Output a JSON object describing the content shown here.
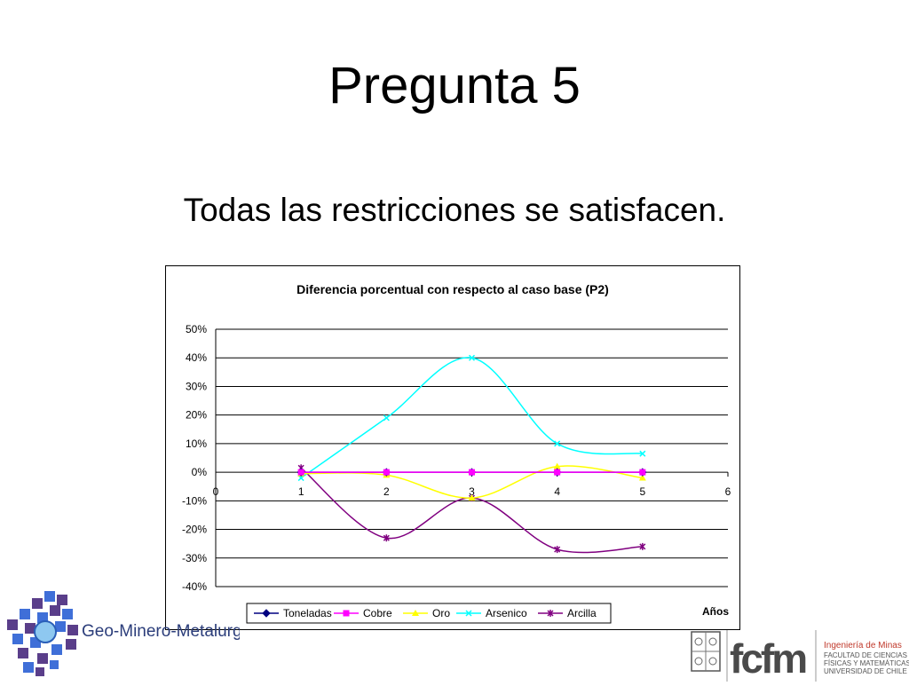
{
  "slide": {
    "title": "Pregunta 5",
    "subtitle": "Todas las restricciones se satisfacen."
  },
  "logos": {
    "left_text": "Geo-Minero-Metalurgia",
    "right_brand": "fcfm",
    "right_lines": [
      "Ingeniería de Minas",
      "FACULTAD DE CIENCIAS",
      "FÍSICAS Y MATEMÁTICAS",
      "UNIVERSIDAD DE CHILE"
    ]
  },
  "colors": {
    "Toneladas": "#000080",
    "Cobre": "#ff00ff",
    "Oro": "#ffff00",
    "Arsenico": "#00ffff",
    "Arcilla": "#800080"
  },
  "chart_data": {
    "type": "scatter",
    "smooth": true,
    "title": "Diferencia porcentual con respecto al caso base (P2)",
    "xlabel": "Años",
    "ylabel": "",
    "xlim": [
      0,
      6
    ],
    "ylim": [
      -40,
      50
    ],
    "x_ticks": [
      "0",
      "1",
      "2",
      "3",
      "4",
      "5",
      "6"
    ],
    "y_ticks": [
      "50%",
      "40%",
      "30%",
      "20%",
      "10%",
      "0%",
      "-10%",
      "-20%",
      "-30%",
      "-40%"
    ],
    "grid": "horizontal",
    "legend": "bottom",
    "series": [
      {
        "name": "Toneladas",
        "x": [
          1,
          2,
          3,
          4,
          5
        ],
        "y": [
          0,
          0,
          0,
          0,
          0
        ]
      },
      {
        "name": "Cobre",
        "x": [
          1,
          2,
          3,
          4,
          5
        ],
        "y": [
          0,
          0,
          0,
          0,
          0
        ]
      },
      {
        "name": "Oro",
        "x": [
          1,
          2,
          3,
          4,
          5
        ],
        "y": [
          -0.5,
          -1,
          -9,
          2,
          -2
        ]
      },
      {
        "name": "Arsenico",
        "x": [
          1,
          2,
          3,
          4,
          5
        ],
        "y": [
          -2,
          19,
          40,
          10,
          6.5
        ]
      },
      {
        "name": "Arcilla",
        "x": [
          1,
          2,
          3,
          4,
          5
        ],
        "y": [
          1.5,
          -23,
          -9,
          -27,
          -26
        ]
      }
    ]
  }
}
